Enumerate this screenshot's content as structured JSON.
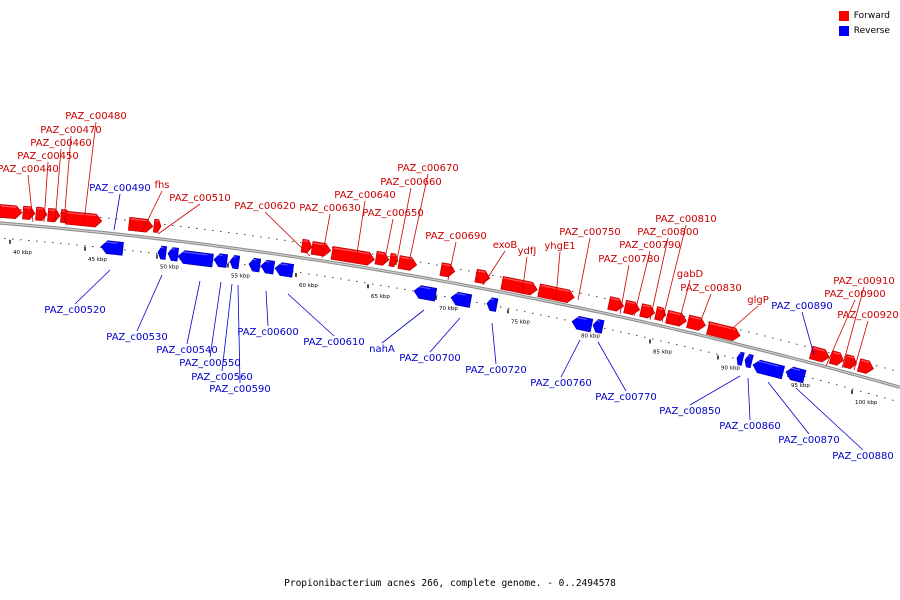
{
  "caption": "Propionibacterium acnes 266, complete genome. - 0..2494578",
  "legend": [
    {
      "label": "Forward",
      "color": "#ff0000"
    },
    {
      "label": "Reverse",
      "color": "#0000ff"
    }
  ],
  "colors": {
    "forward": "#ff0000",
    "reverse": "#0000ff",
    "forward_label": "#cc0000",
    "reverse_label": "#0000cc"
  },
  "scale_ticks": [
    "40 kbp",
    "45 kbp",
    "50 kbp",
    "55 kbp",
    "60 kbp",
    "65 kbp",
    "70 kbp",
    "75 kbp",
    "80 kbp",
    "85 kbp",
    "90 kbp",
    "95 kbp",
    "100 kbp"
  ],
  "forward_genes": [
    "PAZ_c00440",
    "PAZ_c00450",
    "PAZ_c00460",
    "PAZ_c00470",
    "PAZ_c00480",
    "fhs",
    "PAZ_c00510",
    "PAZ_c00620",
    "PAZ_c00630",
    "PAZ_c00640",
    "PAZ_c00650",
    "PAZ_c00660",
    "PAZ_c00670",
    "PAZ_c00690",
    "exoB",
    "ydfJ",
    "yhgE1",
    "PAZ_c00750",
    "PAZ_c00780",
    "PAZ_c00790",
    "PAZ_c00800",
    "PAZ_c00810",
    "gabD",
    "PAZ_c00830",
    "glgP",
    "PAZ_c00900",
    "PAZ_c00910",
    "PAZ_c00920"
  ],
  "reverse_genes": [
    "PAZ_c00490",
    "PAZ_c00520",
    "PAZ_c00530",
    "PAZ_c00540",
    "PAZ_c00550",
    "PAZ_c00560",
    "PAZ_c00590",
    "PAZ_c00600",
    "PAZ_c00610",
    "nahA",
    "PAZ_c00700",
    "PAZ_c00720",
    "PAZ_c00760",
    "PAZ_c00770",
    "PAZ_c00850",
    "PAZ_c00860",
    "PAZ_c00870",
    "PAZ_c00880",
    "PAZ_c00890"
  ]
}
